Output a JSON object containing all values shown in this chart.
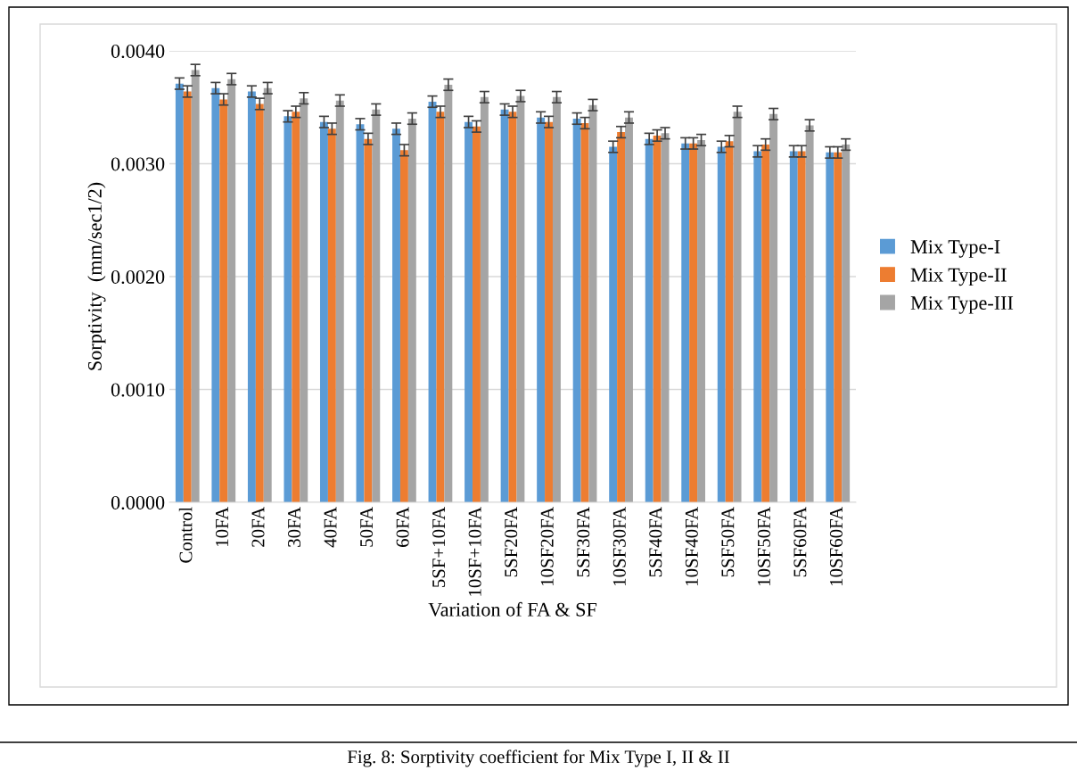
{
  "chart_data": {
    "type": "bar",
    "xlabel": "Variation of FA & SF",
    "ylabel": "Sorptivity  (mm/sec1/2)",
    "categories": [
      "Control",
      "10FA",
      "20FA",
      "30FA",
      "40FA",
      "50FA",
      "60FA",
      "5SF+10FA",
      "10SF+10FA",
      "5SF20FA",
      "10SF20FA",
      "5SF30FA",
      "10SF30FA",
      "5SF40FA",
      "10SF40FA",
      "5SF50FA",
      "10SF50FA",
      "5SF60FA",
      "10SF60FA"
    ],
    "series": [
      {
        "name": "Mix Type-I",
        "color": "#5b9bd5",
        "values": [
          0.00371,
          0.00367,
          0.00364,
          0.00342,
          0.00337,
          0.00335,
          0.00331,
          0.00355,
          0.00337,
          0.00348,
          0.00341,
          0.0034,
          0.00315,
          0.00322,
          0.00318,
          0.00315,
          0.00311,
          0.00311,
          0.0031
        ],
        "errors": [
          5e-05,
          5e-05,
          5e-05,
          5e-05,
          5e-05,
          5e-05,
          5e-05,
          5e-05,
          5e-05,
          5e-05,
          5e-05,
          5e-05,
          5e-05,
          5e-05,
          5e-05,
          5e-05,
          5e-05,
          5e-05,
          5e-05
        ]
      },
      {
        "name": "Mix Type-II",
        "color": "#ed7d31",
        "values": [
          0.00364,
          0.00357,
          0.00353,
          0.00346,
          0.00331,
          0.00322,
          0.00312,
          0.00346,
          0.00333,
          0.00346,
          0.00337,
          0.00336,
          0.00328,
          0.00325,
          0.00318,
          0.0032,
          0.00317,
          0.00311,
          0.0031
        ],
        "errors": [
          5e-05,
          5e-05,
          5e-05,
          5e-05,
          5e-05,
          5e-05,
          5e-05,
          5e-05,
          5e-05,
          5e-05,
          5e-05,
          5e-05,
          5e-05,
          5e-05,
          5e-05,
          5e-05,
          5e-05,
          5e-05,
          5e-05
        ]
      },
      {
        "name": "Mix Type-III",
        "color": "#a5a5a5",
        "values": [
          0.00383,
          0.00375,
          0.00367,
          0.00358,
          0.00356,
          0.00348,
          0.0034,
          0.0037,
          0.00359,
          0.0036,
          0.00359,
          0.00352,
          0.00341,
          0.00327,
          0.00321,
          0.00346,
          0.00344,
          0.00334,
          0.00317
        ],
        "errors": [
          5e-05,
          5e-05,
          5e-05,
          5e-05,
          5e-05,
          5e-05,
          5e-05,
          5e-05,
          5e-05,
          5e-05,
          5e-05,
          5e-05,
          5e-05,
          5e-05,
          5e-05,
          5e-05,
          5e-05,
          5e-05,
          5e-05
        ]
      }
    ],
    "ylim": [
      0,
      0.004
    ],
    "yticks": [
      {
        "value": 0,
        "label": "0.0000"
      },
      {
        "value": 0.001,
        "label": "0.0010"
      },
      {
        "value": 0.002,
        "label": "0.0020"
      },
      {
        "value": 0.003,
        "label": "0.0030"
      },
      {
        "value": 0.004,
        "label": "0.0040"
      }
    ],
    "grid": "y",
    "legend": "right",
    "annotations": [
      "Fig. 8: Sorptivity coefficient for Mix Type I, II & II"
    ]
  }
}
